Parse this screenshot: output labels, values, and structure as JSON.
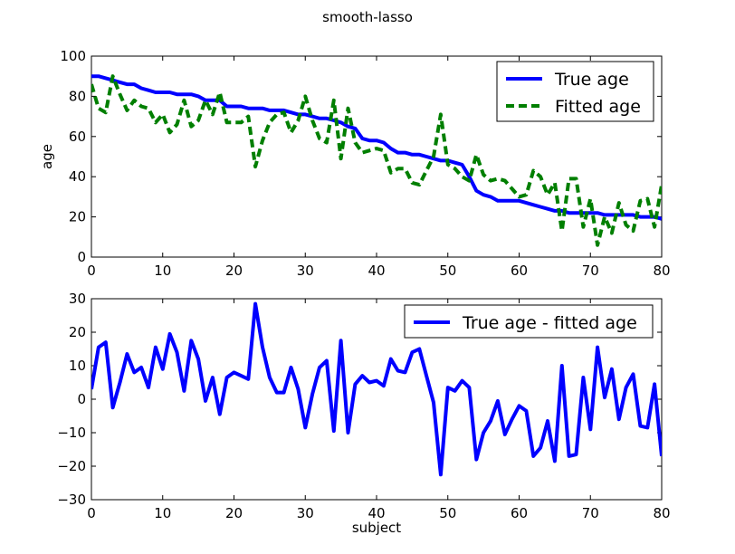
{
  "figure": {
    "suptitle": "smooth-lasso",
    "colors": {
      "true_age": "#0000ff",
      "fitted_age": "#007f00",
      "residual": "#0000ff"
    }
  },
  "chart_data": [
    {
      "type": "line",
      "title": "",
      "xlabel": "",
      "ylabel": "age",
      "xlim": [
        0,
        80
      ],
      "ylim": [
        0,
        100
      ],
      "xticks": [
        "0",
        "10",
        "20",
        "30",
        "40",
        "50",
        "60",
        "70",
        "80"
      ],
      "yticks": [
        "0",
        "20",
        "40",
        "60",
        "80",
        "100"
      ],
      "legend_position": "top-right",
      "series": [
        {
          "name": "True age",
          "style": "solid",
          "x": [
            0,
            1,
            2,
            3,
            4,
            5,
            6,
            7,
            8,
            9,
            10,
            11,
            12,
            13,
            14,
            15,
            16,
            17,
            18,
            19,
            20,
            21,
            22,
            23,
            24,
            25,
            26,
            27,
            28,
            29,
            30,
            31,
            32,
            33,
            34,
            35,
            36,
            37,
            38,
            39,
            40,
            41,
            42,
            43,
            44,
            45,
            46,
            47,
            48,
            49,
            50,
            51,
            52,
            53,
            54,
            55,
            56,
            57,
            58,
            59,
            60,
            61,
            62,
            63,
            64,
            65,
            66,
            67,
            68,
            69,
            70,
            71,
            72,
            73,
            74,
            75,
            76,
            77,
            78,
            79,
            80
          ],
          "y": [
            90,
            90,
            89,
            88,
            87,
            86,
            86,
            84,
            83,
            82,
            82,
            82,
            81,
            81,
            81,
            80,
            78,
            78,
            78,
            75,
            75,
            75,
            74,
            74,
            74,
            73,
            73,
            73,
            72,
            71,
            71,
            70,
            69,
            69,
            68,
            67,
            65,
            64,
            59,
            58,
            58,
            57,
            54,
            52,
            52,
            51,
            51,
            50,
            49,
            48,
            48,
            47,
            46,
            40,
            33,
            31,
            30,
            28,
            28,
            28,
            28,
            27,
            26,
            25,
            24,
            23,
            23,
            22,
            22,
            22,
            22,
            22,
            21,
            21,
            21,
            21,
            21,
            20,
            20,
            20,
            19
          ]
        },
        {
          "name": "Fitted age",
          "style": "dashed",
          "x": [
            0,
            1,
            2,
            3,
            4,
            5,
            6,
            7,
            8,
            9,
            10,
            11,
            12,
            13,
            14,
            15,
            16,
            17,
            18,
            19,
            20,
            21,
            22,
            23,
            24,
            25,
            26,
            27,
            28,
            29,
            30,
            31,
            32,
            33,
            34,
            35,
            36,
            37,
            38,
            39,
            40,
            41,
            42,
            43,
            44,
            45,
            46,
            47,
            48,
            49,
            50,
            51,
            52,
            53,
            54,
            55,
            56,
            57,
            58,
            59,
            60,
            61,
            62,
            63,
            64,
            65,
            66,
            67,
            68,
            69,
            70,
            71,
            72,
            73,
            74,
            75,
            76,
            77,
            78,
            79,
            80
          ],
          "y": [
            86,
            74,
            72,
            90,
            81,
            73,
            78,
            75,
            74,
            67,
            71,
            62,
            66,
            78,
            65,
            68,
            78,
            71,
            82,
            67,
            67,
            67,
            70,
            45,
            58,
            67,
            71,
            72,
            62,
            68,
            80,
            68,
            59,
            57,
            78,
            49,
            74,
            57,
            52,
            53,
            54,
            53,
            42,
            44,
            44,
            37,
            36,
            43,
            50,
            71,
            46,
            44,
            40,
            38,
            51,
            41,
            38,
            39,
            38,
            34,
            30,
            31,
            43,
            40,
            31,
            37,
            13,
            39,
            39,
            15,
            29,
            6,
            20,
            12,
            27,
            16,
            13,
            28,
            29,
            15,
            36
          ]
        }
      ]
    },
    {
      "type": "line",
      "title": "",
      "xlabel": "subject",
      "ylabel": "",
      "xlim": [
        0,
        80
      ],
      "ylim": [
        -30,
        30
      ],
      "xticks": [
        "0",
        "10",
        "20",
        "30",
        "40",
        "50",
        "60",
        "70",
        "80"
      ],
      "yticks": [
        "−30",
        "−20",
        "−10",
        "0",
        "10",
        "20",
        "30"
      ],
      "legend_position": "top-right",
      "series": [
        {
          "name": "True age - fitted age",
          "style": "solid",
          "x": [
            0,
            1,
            2,
            3,
            4,
            5,
            6,
            7,
            8,
            9,
            10,
            11,
            12,
            13,
            14,
            15,
            16,
            17,
            18,
            19,
            20,
            21,
            22,
            23,
            24,
            25,
            26,
            27,
            28,
            29,
            30,
            31,
            32,
            33,
            34,
            35,
            36,
            37,
            38,
            39,
            40,
            41,
            42,
            43,
            44,
            45,
            46,
            47,
            48,
            49,
            50,
            51,
            52,
            53,
            54,
            55,
            56,
            57,
            58,
            59,
            60,
            61,
            62,
            63,
            64,
            65,
            66,
            67,
            68,
            69,
            70,
            71,
            72,
            73,
            74,
            75,
            76,
            77,
            78,
            79,
            80
          ],
          "y": [
            3,
            15.5,
            17,
            -2.5,
            5,
            13.5,
            8,
            9.5,
            3.5,
            15.5,
            9,
            19.5,
            14,
            2.5,
            17.5,
            12,
            -0.5,
            6.5,
            -4.5,
            6.5,
            8,
            7,
            6,
            28.5,
            15.5,
            6.5,
            2,
            2,
            9.5,
            3,
            -8.5,
            1.5,
            9.5,
            11.5,
            -9.5,
            17.5,
            -10,
            4.5,
            7,
            5,
            5.5,
            4,
            12,
            8.5,
            8,
            14,
            15,
            7,
            -1,
            -22.5,
            3.5,
            2.5,
            5.5,
            3.5,
            -18,
            -10,
            -6.5,
            -0.5,
            -10.5,
            -6,
            -2,
            -3.5,
            -17,
            -14.5,
            -6.5,
            -18.5,
            10,
            -17,
            -16.5,
            6.5,
            -9,
            15.5,
            0.5,
            9,
            -6,
            3.5,
            7.5,
            -8,
            -8.5,
            4.5,
            -17
          ]
        }
      ]
    }
  ]
}
